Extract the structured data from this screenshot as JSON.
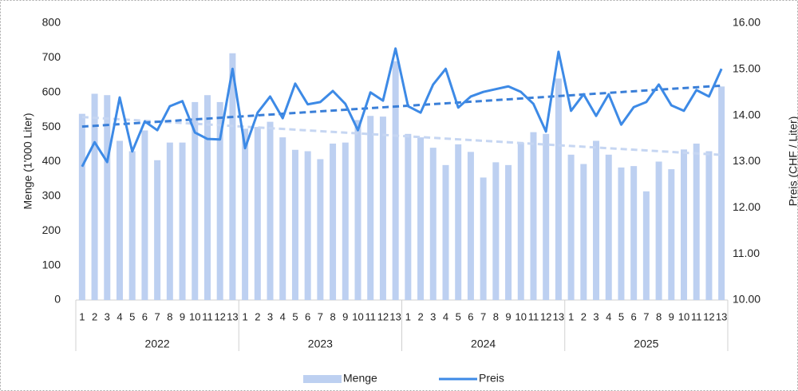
{
  "chart_data": {
    "type": "bar-line",
    "categories": [
      "1",
      "2",
      "3",
      "4",
      "5",
      "6",
      "7",
      "8",
      "9",
      "10",
      "11",
      "12",
      "13",
      "1",
      "2",
      "3",
      "4",
      "5",
      "6",
      "7",
      "8",
      "9",
      "10",
      "11",
      "12",
      "13",
      "1",
      "2",
      "3",
      "4",
      "5",
      "6",
      "7",
      "8",
      "9",
      "10",
      "11",
      "12",
      "13",
      "1",
      "2",
      "3",
      "4",
      "5",
      "6",
      "7",
      "8",
      "9",
      "10",
      "11",
      "12",
      "13"
    ],
    "groups": [
      "2022",
      "2023",
      "2024",
      "2025"
    ],
    "y_label": "Menge (1'000 Liter)",
    "y2_label": "Preis (CHF / Liter)",
    "ylim": [
      0,
      800
    ],
    "yticks": [
      0,
      100,
      200,
      300,
      400,
      500,
      600,
      700,
      800
    ],
    "y2lim": [
      10,
      16
    ],
    "y2ticks": [
      {
        "value": 10,
        "label": "10.00"
      },
      {
        "value": 11,
        "label": "11.00"
      },
      {
        "value": 12,
        "label": "12.00"
      },
      {
        "value": 13,
        "label": "13.00"
      },
      {
        "value": 14,
        "label": "14.00"
      },
      {
        "value": 15,
        "label": "15.00"
      },
      {
        "value": 16,
        "label": "16.00"
      }
    ],
    "trendlines": true,
    "legend": "bottom",
    "series": [
      {
        "name": "Menge",
        "type": "bar",
        "color": "#bdd0f1",
        "trend_color": "#c6d6f2",
        "values": [
          538,
          596,
          592,
          460,
          430,
          490,
          404,
          455,
          455,
          572,
          592,
          572,
          713,
          495,
          500,
          515,
          470,
          434,
          430,
          407,
          452,
          455,
          520,
          532,
          530,
          690,
          480,
          470,
          440,
          390,
          450,
          428,
          354,
          398,
          390,
          455,
          485,
          480,
          640,
          420,
          393,
          460,
          420,
          383,
          387,
          314,
          400,
          378,
          435,
          452,
          430,
          617
        ]
      },
      {
        "name": "Preis",
        "type": "line",
        "axis": "y2",
        "color": "#3d8ae6",
        "trend_color": "#3a7fd8",
        "values": [
          12.89,
          13.42,
          12.99,
          14.39,
          13.22,
          13.87,
          13.68,
          14.2,
          14.31,
          13.63,
          13.49,
          13.48,
          15.01,
          13.29,
          14.06,
          14.41,
          13.94,
          14.69,
          14.24,
          14.29,
          14.53,
          14.25,
          13.68,
          14.5,
          14.32,
          15.45,
          14.2,
          14.06,
          14.67,
          15.01,
          14.17,
          14.41,
          14.51,
          14.57,
          14.63,
          14.51,
          14.25,
          13.65,
          15.38,
          14.1,
          14.46,
          13.99,
          14.46,
          13.8,
          14.18,
          14.29,
          14.67,
          14.22,
          14.1,
          14.55,
          14.41,
          15.01
        ]
      }
    ]
  }
}
